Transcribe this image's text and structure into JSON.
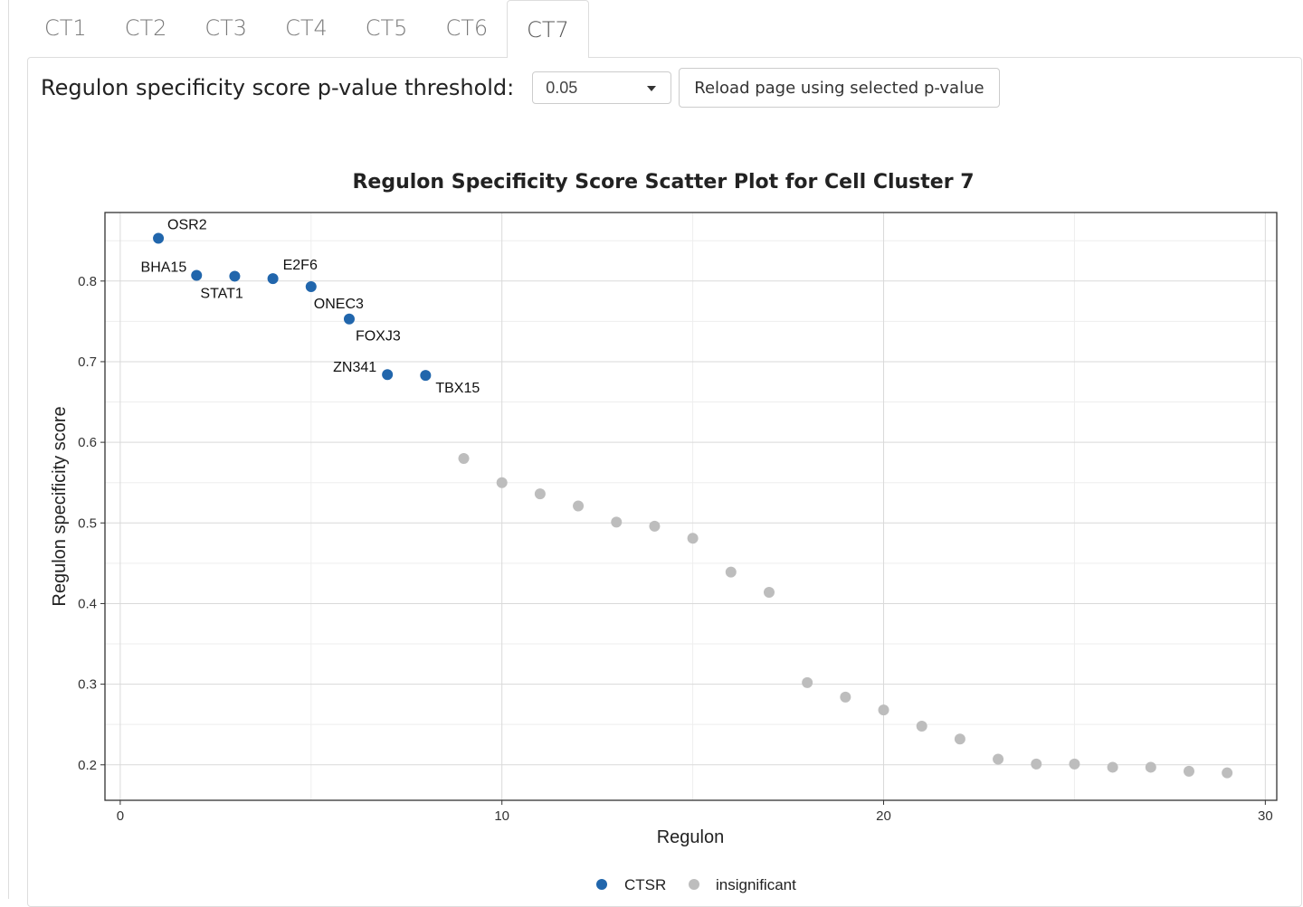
{
  "tabs": [
    {
      "label": "CT1",
      "active": false
    },
    {
      "label": "CT2",
      "active": false
    },
    {
      "label": "CT3",
      "active": false
    },
    {
      "label": "CT4",
      "active": false
    },
    {
      "label": "CT5",
      "active": false
    },
    {
      "label": "CT6",
      "active": false
    },
    {
      "label": "CT7",
      "active": true
    }
  ],
  "controls": {
    "threshold_label": "Regulon specificity score p-value threshold:",
    "threshold_value": "0.05",
    "reload_label": "Reload page using selected p-value"
  },
  "colors": {
    "ctsr": "#2166ac",
    "insignificant": "#bdbdbd",
    "grid_major": "#d9d9d9",
    "grid_minor": "#eeeeee",
    "axis": "#333333"
  },
  "chart_data": {
    "type": "scatter",
    "title": "Regulon Specificity Score Scatter Plot for Cell Cluster 7",
    "xlabel": "Regulon",
    "ylabel": "Regulon specificity score",
    "xlim": [
      -0.4,
      30.3
    ],
    "ylim": [
      0.156,
      0.885
    ],
    "xticks": [
      0,
      10,
      20,
      30
    ],
    "yticks": [
      0.2,
      0.3,
      0.4,
      0.5,
      0.6,
      0.7,
      0.8
    ],
    "legend": {
      "position": "bottom",
      "entries": [
        "CTSR",
        "insignificant"
      ]
    },
    "series": [
      {
        "name": "CTSR",
        "points": [
          {
            "x": 1,
            "y": 0.853,
            "label": "OSR2"
          },
          {
            "x": 2,
            "y": 0.807,
            "label": "BHA15"
          },
          {
            "x": 3,
            "y": 0.806,
            "label": "STAT1"
          },
          {
            "x": 4,
            "y": 0.803,
            "label": "E2F6"
          },
          {
            "x": 5,
            "y": 0.793,
            "label": "ONEC3"
          },
          {
            "x": 6,
            "y": 0.753,
            "label": "FOXJ3"
          },
          {
            "x": 7,
            "y": 0.684,
            "label": "ZN341"
          },
          {
            "x": 8,
            "y": 0.683,
            "label": "TBX15"
          }
        ]
      },
      {
        "name": "insignificant",
        "points": [
          {
            "x": 9,
            "y": 0.58
          },
          {
            "x": 10,
            "y": 0.55
          },
          {
            "x": 11,
            "y": 0.536
          },
          {
            "x": 12,
            "y": 0.521
          },
          {
            "x": 13,
            "y": 0.501
          },
          {
            "x": 14,
            "y": 0.496
          },
          {
            "x": 15,
            "y": 0.481
          },
          {
            "x": 16,
            "y": 0.439
          },
          {
            "x": 17,
            "y": 0.414
          },
          {
            "x": 18,
            "y": 0.302
          },
          {
            "x": 19,
            "y": 0.284
          },
          {
            "x": 20,
            "y": 0.268
          },
          {
            "x": 21,
            "y": 0.248
          },
          {
            "x": 22,
            "y": 0.232
          },
          {
            "x": 23,
            "y": 0.207
          },
          {
            "x": 24,
            "y": 0.201
          },
          {
            "x": 25,
            "y": 0.201
          },
          {
            "x": 26,
            "y": 0.197
          },
          {
            "x": 27,
            "y": 0.197
          },
          {
            "x": 28,
            "y": 0.192
          },
          {
            "x": 29,
            "y": 0.19
          }
        ]
      }
    ]
  }
}
